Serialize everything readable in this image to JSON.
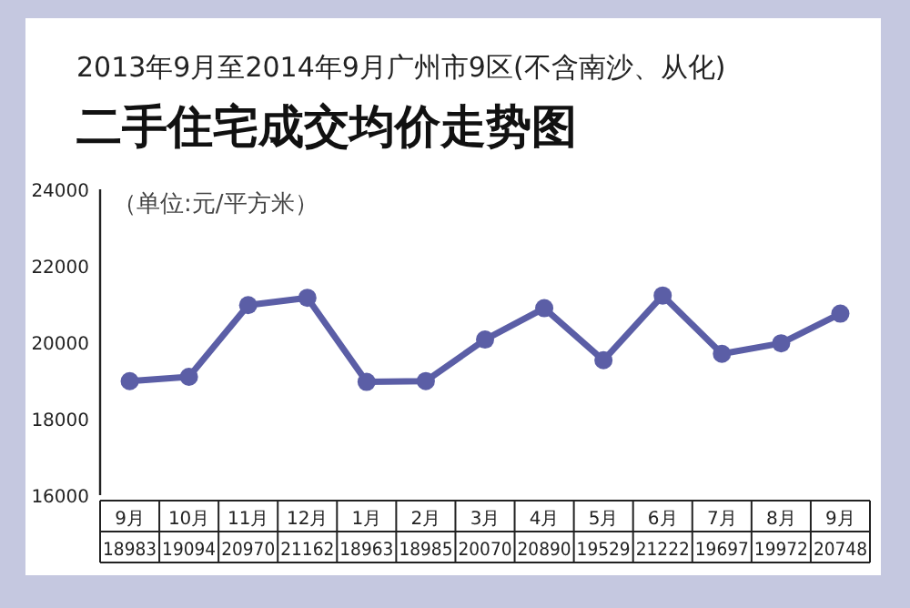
{
  "chart_data": {
    "type": "line",
    "title": "二手住宅成交均价走势图",
    "subtitle": "2013年9月至2014年9月广州市9区(不含南沙、从化)",
    "annotations": [
      "（单位:元/平方米）"
    ],
    "categories": [
      "9月",
      "10月",
      "11月",
      "12月",
      "1月",
      "2月",
      "3月",
      "4月",
      "5月",
      "6月",
      "7月",
      "8月",
      "9月"
    ],
    "series": [
      {
        "color": "#5b5ea6",
        "values": [
          18983,
          19094,
          20970,
          21162,
          18963,
          18985,
          20070,
          20890,
          19529,
          21222,
          19697,
          19972,
          20748
        ]
      }
    ],
    "ylim": [
      16000,
      24000
    ],
    "yticks": [
      16000,
      18000,
      20000,
      22000,
      24000
    ],
    "marker": "circle",
    "grid": false,
    "data_labels": true
  }
}
